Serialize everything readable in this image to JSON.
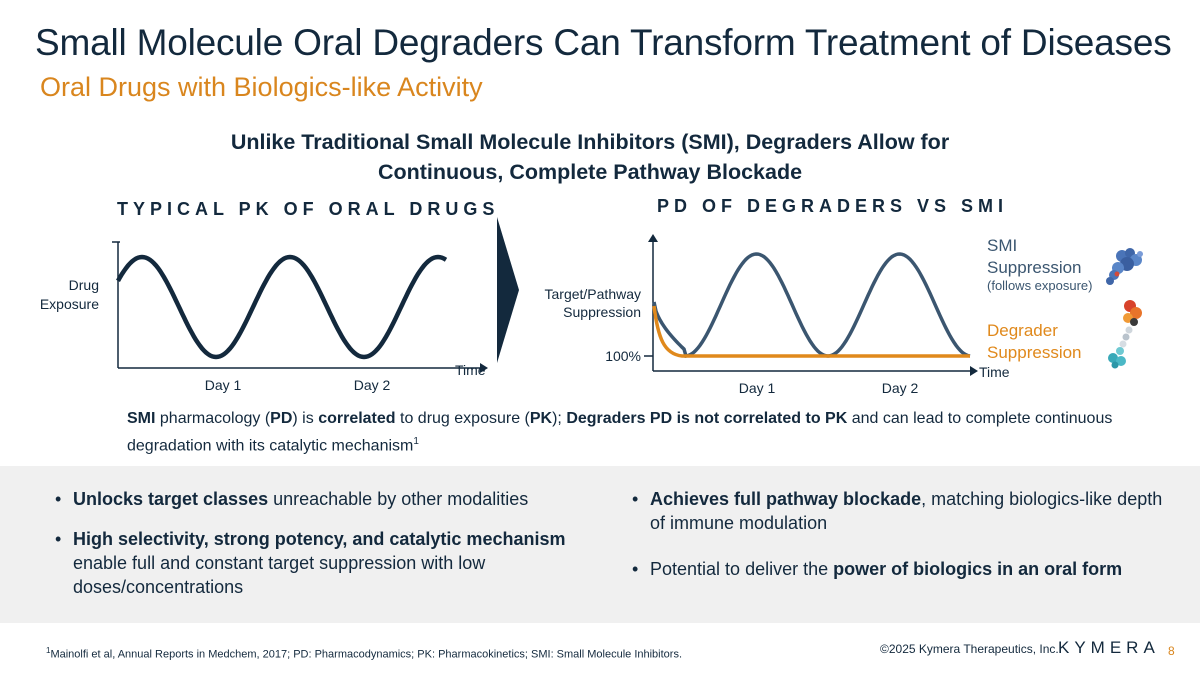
{
  "slide": {
    "title": "Small Molecule Oral Degraders Can Transform Treatment of Diseases",
    "subtitle": "Oral Drugs with Biologics-like Activity",
    "headline_line1": "Unlike Traditional Small Molecule Inhibitors (SMI), Degraders Allow for",
    "headline_line2": "Continuous, Complete Pathway Blockade"
  },
  "pk_chart": {
    "title": "TYPICAL PK OF ORAL DRUGS",
    "ylabel_line1": "Drug",
    "ylabel_line2": "Exposure",
    "xlabel": "Time",
    "ticks": [
      "Day 1",
      "Day 2"
    ]
  },
  "pd_chart": {
    "title": "PD OF DEGRADERS VS SMI",
    "ylabel_line1": "Target/Pathway",
    "ylabel_line2": "Suppression",
    "y_marker": "100%",
    "xlabel": "Time",
    "ticks": [
      "Day 1",
      "Day 2"
    ],
    "smi_label_line1": "SMI",
    "smi_label_line2": "Suppression",
    "smi_label_note": "(follows exposure)",
    "degrader_label_line1": "Degrader",
    "degrader_label_line2": "Suppression"
  },
  "note": {
    "t1": "SMI",
    "t2": " pharmacology (",
    "t3": "PD",
    "t4": ") is ",
    "t5": "correlated",
    "t6": " to drug exposure (",
    "t7": "PK",
    "t8": "); ",
    "t9": "Degraders PD is not correlated to PK",
    "t10": " and can lead to complete continuous degradation with its catalytic mechanism",
    "t11": "1"
  },
  "bullets_left": [
    {
      "bold": "Unlocks target classes",
      "rest": " unreachable by other modalities"
    },
    {
      "bold": "High selectivity, strong potency, and catalytic mechanism",
      "rest": " enable full and constant target suppression with low doses/concentrations"
    }
  ],
  "bullets_right": [
    {
      "pre": "",
      "bold": "Achieves full pathway blockade",
      "rest": ", matching biologics-like depth of immune modulation"
    },
    {
      "pre": "Potential to deliver the ",
      "bold": "power of biologics in an oral form",
      "rest": ""
    }
  ],
  "footer": {
    "footnote_sup": "1",
    "footnote": "Mainolfi et al, Annual Reports in Medchem, 2017; PD: Pharmacodynamics; PK: Pharmacokinetics; SMI: Small Molecule Inhibitors.",
    "copyright": "©2025 Kymera Therapeutics, Inc.",
    "logo": "KYMERA",
    "page": "8"
  },
  "colors": {
    "navy": "#13293d",
    "orange": "#d9861e",
    "smi_curve": "#3b5670",
    "degrader_curve": "#e0891c"
  },
  "icons": [
    "arrow-chevron-icon",
    "smi-molecule-icon",
    "degrader-molecule-icon"
  ]
}
